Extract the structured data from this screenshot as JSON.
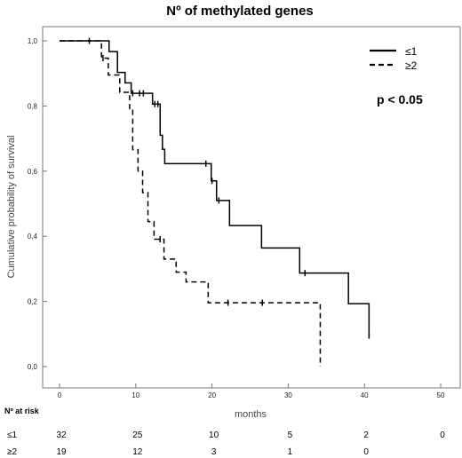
{
  "chart_data": {
    "type": "line",
    "subtype": "kaplan-meier",
    "title": "Nº of methylated genes",
    "xlabel": "months",
    "ylabel": "Cumulative probability of survival",
    "xlim": [
      0,
      50
    ],
    "ylim": [
      0,
      1
    ],
    "xticks": [
      0,
      10,
      20,
      30,
      40,
      50
    ],
    "yticks": [
      0,
      0.2,
      0.4,
      0.6,
      0.8,
      1.0
    ],
    "ytick_labels": [
      "0,0",
      "0,2",
      "0,4",
      "0,6",
      "0,8",
      "1,0"
    ],
    "grid": false,
    "legend_position": "top-right",
    "annotation": "p < 0.05",
    "series": [
      {
        "name": "≤1",
        "line_style": "solid",
        "steps": [
          [
            0,
            1.0
          ],
          [
            5.7,
            1.0
          ],
          [
            6.5,
            0.967
          ],
          [
            7.6,
            0.903
          ],
          [
            8.6,
            0.871
          ],
          [
            9.4,
            0.839
          ],
          [
            12.2,
            0.806
          ],
          [
            13.2,
            0.71
          ],
          [
            13.5,
            0.667
          ],
          [
            13.8,
            0.623
          ],
          [
            19.9,
            0.57
          ],
          [
            20.6,
            0.51
          ],
          [
            22.3,
            0.433
          ],
          [
            26.5,
            0.364
          ],
          [
            31.5,
            0.287
          ],
          [
            37.9,
            0.193
          ],
          [
            40.6,
            0.193
          ],
          [
            40.6,
            0.095
          ]
        ],
        "censor": [
          [
            3.9,
            1.0
          ],
          [
            9.6,
            0.839
          ],
          [
            10.5,
            0.839
          ],
          [
            11.0,
            0.839
          ],
          [
            12.5,
            0.806
          ],
          [
            12.9,
            0.806
          ],
          [
            19.2,
            0.623
          ],
          [
            20.0,
            0.57
          ],
          [
            20.9,
            0.51
          ],
          [
            32.2,
            0.287
          ],
          [
            40.6,
            0.095
          ]
        ]
      },
      {
        "name": "≥2",
        "line_style": "dashed",
        "steps": [
          [
            0,
            1.0
          ],
          [
            5.5,
            0.947
          ],
          [
            6.4,
            0.895
          ],
          [
            7.9,
            0.842
          ],
          [
            9.2,
            0.789
          ],
          [
            9.6,
            0.666
          ],
          [
            10.3,
            0.6
          ],
          [
            10.9,
            0.534
          ],
          [
            11.6,
            0.445
          ],
          [
            12.4,
            0.391
          ],
          [
            13.7,
            0.33
          ],
          [
            15.3,
            0.29
          ],
          [
            16.6,
            0.26
          ],
          [
            19.5,
            0.196
          ],
          [
            34.2,
            0.196
          ],
          [
            34.2,
            0.0
          ]
        ],
        "censor": [
          [
            5.7,
            0.947
          ],
          [
            13.2,
            0.391
          ],
          [
            22.1,
            0.196
          ],
          [
            26.6,
            0.196
          ]
        ]
      }
    ],
    "risk_table": {
      "header": "Nº at risk",
      "times": [
        0,
        10,
        20,
        30,
        40,
        50
      ],
      "rows": [
        {
          "label": "≤1",
          "counts": [
            "32",
            "25",
            "10",
            "5",
            "2",
            "0"
          ]
        },
        {
          "label": "≥2",
          "counts": [
            "19",
            "12",
            "3",
            "1",
            "0",
            ""
          ]
        }
      ]
    }
  }
}
